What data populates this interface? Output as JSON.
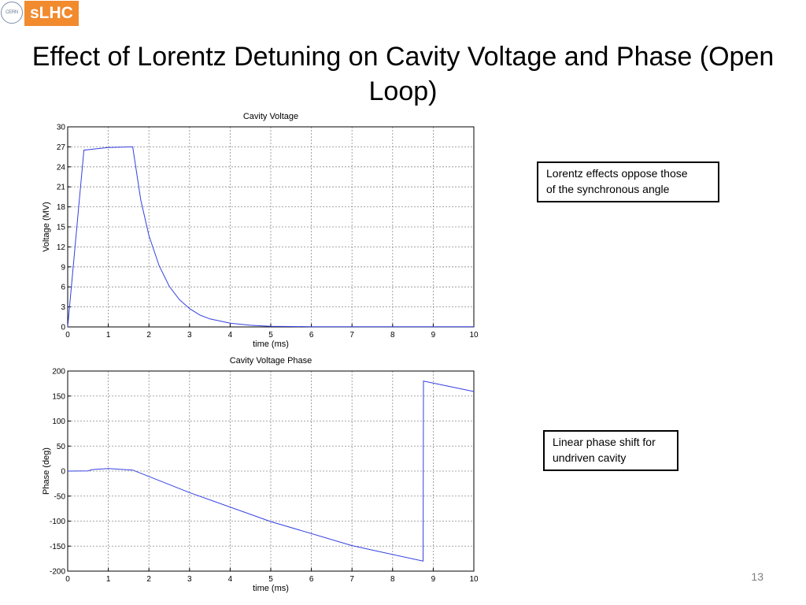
{
  "logo": {
    "cern_text": "CERN",
    "text": "sLHC"
  },
  "slide": {
    "title": "Effect of Lorentz Detuning on Cavity Voltage and Phase (Open Loop)",
    "page_number": "13"
  },
  "notes": {
    "note1": "Lorentz effects oppose those\nof the synchronous angle",
    "note2": "Linear phase shift for\nundriven cavity"
  },
  "colors": {
    "line": "#3340e0",
    "grid": "#8c8c8c",
    "accent": "#f28a2e"
  },
  "chart_data": [
    {
      "type": "line",
      "title": "Cavity Voltage",
      "xlabel": "time (ms)",
      "ylabel": "Voltage (MV)",
      "xlim": [
        0,
        10
      ],
      "ylim": [
        0,
        30
      ],
      "xticks": [
        0,
        1,
        2,
        3,
        4,
        5,
        6,
        7,
        8,
        9,
        10
      ],
      "yticks": [
        0,
        3,
        6,
        9,
        12,
        15,
        18,
        21,
        24,
        27,
        30
      ],
      "grid": true,
      "series": [
        {
          "x": [
            0,
            0.4,
            1.0,
            1.6,
            1.8,
            2.0,
            2.25,
            2.5,
            2.75,
            3.0,
            3.25,
            3.5,
            4.0,
            4.5,
            5.0,
            6.0,
            7.0,
            8.0,
            9.0,
            10.0
          ],
          "values": [
            0,
            26.5,
            26.9,
            27,
            19.0,
            13.7,
            9.2,
            6.1,
            4.1,
            2.75,
            1.8,
            1.2,
            0.55,
            0.25,
            0.1,
            0.03,
            0.02,
            0.02,
            0.02,
            0.02
          ]
        }
      ]
    },
    {
      "type": "line",
      "title": "Cavity Voltage Phase",
      "xlabel": "time (ms)",
      "ylabel": "Phase (deg)",
      "xlim": [
        0,
        10
      ],
      "ylim": [
        -200,
        200
      ],
      "xticks": [
        0,
        1,
        2,
        3,
        4,
        5,
        6,
        7,
        8,
        9,
        10
      ],
      "yticks": [
        -200,
        -150,
        -100,
        -50,
        0,
        50,
        100,
        150,
        200
      ],
      "grid": true,
      "series": [
        {
          "x": [
            0,
            0.5,
            0.6,
            1.0,
            1.4,
            1.6,
            3.0,
            5.0,
            7.0,
            8.75,
            8.76,
            10.0
          ],
          "values": [
            0,
            0.5,
            3,
            5,
            3,
            2,
            -43,
            -101,
            -149,
            -180,
            180,
            159
          ]
        }
      ]
    }
  ]
}
